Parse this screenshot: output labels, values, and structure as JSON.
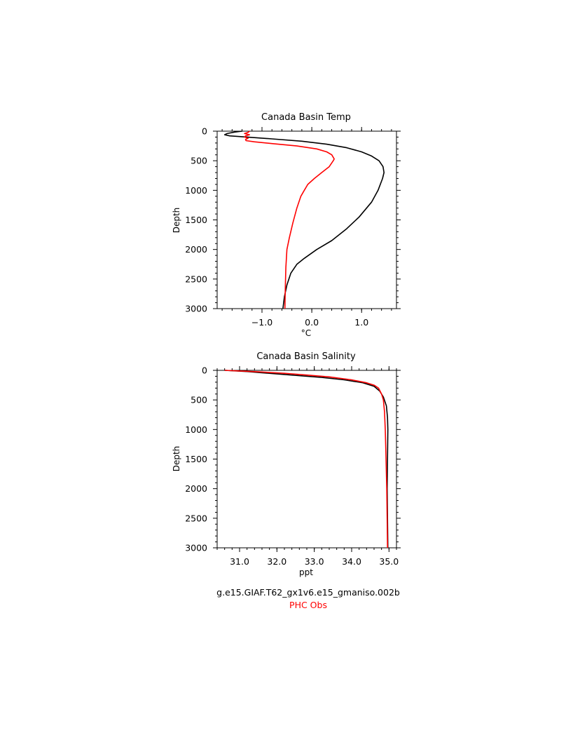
{
  "chart_data": [
    {
      "type": "line",
      "title": "Canada Basin Temp",
      "xlabel": "°C",
      "ylabel": "Depth",
      "xlim": [
        -1.9,
        1.7
      ],
      "ylim": [
        3000,
        0
      ],
      "x_ticks": [
        "−1.0",
        "0.0",
        "1.0"
      ],
      "x_tick_values": [
        -1.0,
        0.0,
        1.0
      ],
      "y_ticks": [
        "0",
        "500",
        "1000",
        "1500",
        "2000",
        "2500",
        "3000"
      ],
      "y_tick_values": [
        0,
        500,
        1000,
        1500,
        2000,
        2500,
        3000
      ],
      "series": [
        {
          "name": "g.e15.GIAF.T62_gx1v6.e15_gmaniso.002b",
          "color": "#000000",
          "points": [
            [
              -1.4,
              0
            ],
            [
              -1.55,
              15
            ],
            [
              -1.7,
              40
            ],
            [
              -1.75,
              60
            ],
            [
              -1.65,
              80
            ],
            [
              -1.3,
              100
            ],
            [
              -0.8,
              130
            ],
            [
              -0.2,
              170
            ],
            [
              0.3,
              220
            ],
            [
              0.7,
              280
            ],
            [
              1.0,
              350
            ],
            [
              1.2,
              420
            ],
            [
              1.35,
              500
            ],
            [
              1.43,
              600
            ],
            [
              1.45,
              700
            ],
            [
              1.42,
              800
            ],
            [
              1.33,
              1000
            ],
            [
              1.2,
              1200
            ],
            [
              0.95,
              1450
            ],
            [
              0.7,
              1650
            ],
            [
              0.4,
              1850
            ],
            [
              0.1,
              2000
            ],
            [
              -0.15,
              2150
            ],
            [
              -0.3,
              2250
            ],
            [
              -0.42,
              2400
            ],
            [
              -0.5,
              2600
            ],
            [
              -0.55,
              2800
            ],
            [
              -0.58,
              3000
            ]
          ]
        },
        {
          "name": "PHC Obs",
          "color": "#ff0000",
          "points": [
            [
              -1.25,
              0
            ],
            [
              -1.28,
              20
            ],
            [
              -1.35,
              40
            ],
            [
              -1.25,
              60
            ],
            [
              -1.33,
              80
            ],
            [
              -1.35,
              100
            ],
            [
              -1.28,
              120
            ],
            [
              -1.33,
              140
            ],
            [
              -1.32,
              160
            ],
            [
              -1.15,
              180
            ],
            [
              -0.8,
              210
            ],
            [
              -0.3,
              250
            ],
            [
              0.1,
              300
            ],
            [
              0.3,
              350
            ],
            [
              0.4,
              400
            ],
            [
              0.45,
              470
            ],
            [
              0.43,
              500
            ],
            [
              0.35,
              600
            ],
            [
              0.2,
              700
            ],
            [
              0.05,
              800
            ],
            [
              -0.08,
              900
            ],
            [
              -0.15,
              1000
            ],
            [
              -0.22,
              1100
            ],
            [
              -0.3,
              1300
            ],
            [
              -0.38,
              1550
            ],
            [
              -0.45,
              1800
            ],
            [
              -0.5,
              2000
            ],
            [
              -0.52,
              2300
            ],
            [
              -0.53,
              2600
            ],
            [
              -0.54,
              3000
            ]
          ]
        }
      ]
    },
    {
      "type": "line",
      "title": "Canada Basin Salinity",
      "xlabel": "ppt",
      "ylabel": "Depth",
      "xlim": [
        30.4,
        35.2
      ],
      "ylim": [
        3000,
        0
      ],
      "x_ticks": [
        "31.0",
        "32.0",
        "33.0",
        "34.0",
        "35.0"
      ],
      "x_tick_values": [
        31.0,
        32.0,
        33.0,
        34.0,
        35.0
      ],
      "y_ticks": [
        "0",
        "500",
        "1000",
        "1500",
        "2000",
        "2500",
        "3000"
      ],
      "y_tick_values": [
        0,
        500,
        1000,
        1500,
        2000,
        2500,
        3000
      ],
      "series": [
        {
          "name": "g.e15.GIAF.T62_gx1v6.e15_gmaniso.002b",
          "color": "#000000",
          "points": [
            [
              30.6,
              0
            ],
            [
              31.2,
              20
            ],
            [
              31.6,
              40
            ],
            [
              32.0,
              60
            ],
            [
              32.6,
              90
            ],
            [
              33.2,
              120
            ],
            [
              33.8,
              160
            ],
            [
              34.3,
              210
            ],
            [
              34.6,
              270
            ],
            [
              34.75,
              350
            ],
            [
              34.85,
              450
            ],
            [
              34.93,
              600
            ],
            [
              34.96,
              800
            ],
            [
              34.97,
              1000
            ],
            [
              34.96,
              1500
            ],
            [
              34.95,
              2000
            ],
            [
              34.96,
              2500
            ],
            [
              34.97,
              3000
            ]
          ]
        },
        {
          "name": "PHC Obs",
          "color": "#ff0000",
          "points": [
            [
              30.6,
              0
            ],
            [
              31.5,
              25
            ],
            [
              32.2,
              50
            ],
            [
              32.8,
              80
            ],
            [
              33.4,
              110
            ],
            [
              34.0,
              160
            ],
            [
              34.4,
              210
            ],
            [
              34.6,
              250
            ],
            [
              34.72,
              300
            ],
            [
              34.8,
              400
            ],
            [
              34.85,
              500
            ],
            [
              34.88,
              700
            ],
            [
              34.9,
              1000
            ],
            [
              34.92,
              1500
            ],
            [
              34.94,
              2000
            ],
            [
              34.95,
              2500
            ],
            [
              34.96,
              3000
            ]
          ]
        }
      ]
    }
  ],
  "legend": {
    "model_label": "g.e15.GIAF.T62_gx1v6.e15_gmaniso.002b",
    "model_color": "#000000",
    "obs_label": "PHC Obs",
    "obs_color": "#ff0000"
  }
}
